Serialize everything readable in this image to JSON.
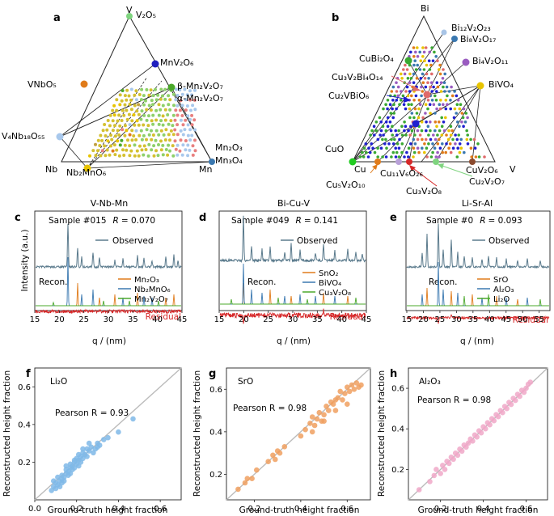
{
  "panel_a": {
    "letter": "a",
    "vertices": {
      "top": "V",
      "left": "Nb",
      "right": "Mn"
    },
    "labels": [
      {
        "text": "V₂O₅",
        "color": "#111111"
      },
      {
        "text": "MnV₂O₆",
        "color": "#1f1fbf"
      },
      {
        "text": "VNbO₅",
        "color": "#e07b1a"
      },
      {
        "text": "β-Mn₂V₂O₇",
        "color": "#4aa82a"
      },
      {
        "text": "α-Mn₂V₂O₇",
        "color": "#8b4a2e"
      },
      {
        "text": "V₄Nb₁₈O₅₅",
        "color": "#8fb5dc"
      },
      {
        "text": "Mn₂O₃",
        "color": "#e88080"
      },
      {
        "text": "Mn₃O₄",
        "color": "#3a78b0"
      },
      {
        "text": "Nb₂MnO₆",
        "color": "#d4b000"
      }
    ]
  },
  "panel_b": {
    "letter": "b",
    "vertices": {
      "top": "Bi",
      "left": "Cu",
      "right": "V"
    },
    "labels": [
      {
        "text": "Bi₁₂V₂O₂₃",
        "color": "#a8c4e6"
      },
      {
        "text": "Bi₈V₂O₁₇",
        "color": "#3a78b0"
      },
      {
        "text": "CuBi₂O₄",
        "color": "#3aa832"
      },
      {
        "text": "Bi₄V₂O₁₁",
        "color": "#9a5cc0"
      },
      {
        "text": "Cu₃V₂Bi₄O₁₄",
        "color": "#e06a6a"
      },
      {
        "text": "BiVO₄",
        "color": "#d4b000"
      },
      {
        "text": "Cu₂VBiO₆",
        "color": "#1f1fcf"
      },
      {
        "text": "CuO",
        "color": "#22bb22"
      },
      {
        "text": "CuV₂O₆",
        "color": "#8b4a2e"
      },
      {
        "text": "Cu₁₁V₆O₂₆",
        "color": "#b8a0d8"
      },
      {
        "text": "Cu₂V₂O₇",
        "color": "#7fd47f"
      },
      {
        "text": "Cu₅V₂O₁₀",
        "color": "#e07b1a"
      },
      {
        "text": "Cu₃V₂O₈",
        "color": "#d62728"
      }
    ]
  },
  "xrd_panels": [
    {
      "letter": "c",
      "title": "V-Nb-Mn",
      "sample": "Sample #015",
      "R_label": "R",
      "R_value": "= 0.070",
      "observed": "Observed",
      "recon": "Recon.",
      "residual": "Residual",
      "legend": [
        {
          "text": "Mn₂O₃",
          "color": "#e07b1a"
        },
        {
          "text": "Nb₂MnO₆",
          "color": "#3a78b0"
        },
        {
          "text": "Mn₂V₂O₇",
          "color": "#4aa82a"
        }
      ],
      "ticks": [
        "15",
        "20",
        "25",
        "30",
        "35",
        "40",
        "45"
      ],
      "xlabel": "q / (nm)",
      "ylabel": "Intensity (a.u.)"
    },
    {
      "letter": "d",
      "title": "Bi-Cu-V",
      "sample": "Sample #049",
      "R_label": "R",
      "R_value": "= 0.141",
      "observed": "Observed",
      "recon": "Recon.",
      "residual": "Residual",
      "legend": [
        {
          "text": "SnO₂",
          "color": "#e07b1a"
        },
        {
          "text": "BiVO₄",
          "color": "#3a78b0"
        },
        {
          "text": "Cu₃V₂O₈",
          "color": "#4aa82a"
        }
      ],
      "ticks": [
        "15",
        "20",
        "25",
        "30",
        "35",
        "40",
        "45"
      ],
      "xlabel": "q / (nm)",
      "ylabel": "Intensity (a.u.)"
    },
    {
      "letter": "e",
      "title": "Li-Sr-Al",
      "sample": "Sample #0",
      "R_label": "R",
      "R_value": "= 0.093",
      "observed": "Observed",
      "recon": "Recon.",
      "residual": "Residual",
      "legend": [
        {
          "text": "SrO",
          "color": "#e07b1a"
        },
        {
          "text": "Al₂O₃",
          "color": "#3a78b0"
        },
        {
          "text": "Li₂O",
          "color": "#4aa82a"
        }
      ],
      "ticks": [
        "15",
        "20",
        "25",
        "30",
        "35",
        "40",
        "45",
        "50",
        "55"
      ],
      "xlabel": "q / (nm)",
      "ylabel": "Intensity (a.u.)"
    }
  ],
  "chart_data": [
    {
      "type": "scatter",
      "panel": "f",
      "title": "Li₂O",
      "annotation": "Pearson R = 0.93",
      "xlabel": "Ground-truth height fraction",
      "ylabel": "Reconstructed height fraction",
      "xlim": [
        0,
        0.7
      ],
      "ylim": [
        0,
        0.7
      ],
      "xticks": [
        "0.0",
        "0.2",
        "0.4",
        "0.6"
      ],
      "yticks": [
        "0.2",
        "0.4",
        "0.6"
      ],
      "color": "#7fb8e8",
      "x": [
        0.08,
        0.09,
        0.1,
        0.1,
        0.11,
        0.12,
        0.12,
        0.13,
        0.13,
        0.14,
        0.14,
        0.15,
        0.15,
        0.16,
        0.16,
        0.17,
        0.17,
        0.18,
        0.18,
        0.19,
        0.19,
        0.2,
        0.2,
        0.21,
        0.21,
        0.22,
        0.22,
        0.23,
        0.23,
        0.24,
        0.25,
        0.25,
        0.26,
        0.27,
        0.28,
        0.29,
        0.3,
        0.31,
        0.33,
        0.35,
        0.09,
        0.11,
        0.13,
        0.15,
        0.17,
        0.19,
        0.21,
        0.23,
        0.26,
        0.3,
        0.4,
        0.47
      ],
      "y": [
        0.05,
        0.07,
        0.06,
        0.09,
        0.08,
        0.1,
        0.07,
        0.11,
        0.13,
        0.12,
        0.1,
        0.14,
        0.16,
        0.13,
        0.15,
        0.17,
        0.19,
        0.16,
        0.18,
        0.2,
        0.17,
        0.22,
        0.19,
        0.21,
        0.24,
        0.2,
        0.23,
        0.25,
        0.22,
        0.24,
        0.27,
        0.23,
        0.26,
        0.28,
        0.25,
        0.27,
        0.3,
        0.29,
        0.32,
        0.33,
        0.1,
        0.12,
        0.09,
        0.18,
        0.14,
        0.21,
        0.18,
        0.27,
        0.3,
        0.28,
        0.36,
        0.43
      ]
    },
    {
      "type": "scatter",
      "panel": "g",
      "title": "SrO",
      "annotation": "Pearson R = 0.98",
      "xlabel": "Ground-truth height fraction",
      "ylabel": "Reconstructed height fraction",
      "xlim": [
        0.08,
        0.7
      ],
      "ylim": [
        0.08,
        0.7
      ],
      "xticks": [
        "0.2",
        "0.4",
        "0.6"
      ],
      "yticks": [
        "0.2",
        "0.4",
        "0.6"
      ],
      "color": "#f0a060",
      "x": [
        0.13,
        0.16,
        0.17,
        0.19,
        0.21,
        0.26,
        0.28,
        0.29,
        0.3,
        0.31,
        0.33,
        0.4,
        0.42,
        0.44,
        0.45,
        0.46,
        0.47,
        0.48,
        0.49,
        0.5,
        0.51,
        0.52,
        0.53,
        0.54,
        0.55,
        0.56,
        0.57,
        0.58,
        0.59,
        0.6,
        0.61,
        0.62,
        0.63,
        0.64,
        0.65,
        0.66,
        0.45,
        0.5,
        0.55,
        0.6
      ],
      "y": [
        0.13,
        0.16,
        0.18,
        0.18,
        0.22,
        0.26,
        0.29,
        0.27,
        0.31,
        0.3,
        0.33,
        0.38,
        0.41,
        0.44,
        0.47,
        0.43,
        0.46,
        0.49,
        0.45,
        0.48,
        0.52,
        0.5,
        0.54,
        0.53,
        0.55,
        0.56,
        0.59,
        0.55,
        0.58,
        0.61,
        0.59,
        0.62,
        0.6,
        0.63,
        0.61,
        0.62,
        0.4,
        0.45,
        0.5,
        0.53
      ]
    },
    {
      "type": "scatter",
      "panel": "h",
      "title": "Al₂O₃",
      "annotation": "Pearson R = 0.98",
      "xlabel": "Ground-truth height fraction",
      "ylabel": "Reconstructed height fraction",
      "xlim": [
        0.05,
        0.7
      ],
      "ylim": [
        0.05,
        0.7
      ],
      "xticks": [
        "0.2",
        "0.4",
        "0.6"
      ],
      "yticks": [
        "0.2",
        "0.4",
        "0.6"
      ],
      "color": "#f0a8c8",
      "x": [
        0.1,
        0.15,
        0.17,
        0.18,
        0.2,
        0.21,
        0.22,
        0.23,
        0.24,
        0.25,
        0.26,
        0.27,
        0.28,
        0.29,
        0.3,
        0.31,
        0.32,
        0.33,
        0.34,
        0.35,
        0.36,
        0.37,
        0.38,
        0.39,
        0.4,
        0.41,
        0.42,
        0.43,
        0.44,
        0.45,
        0.46,
        0.47,
        0.48,
        0.49,
        0.5,
        0.51,
        0.52,
        0.53,
        0.54,
        0.55,
        0.56,
        0.57,
        0.58,
        0.59,
        0.6,
        0.61,
        0.62
      ],
      "y": [
        0.1,
        0.14,
        0.17,
        0.2,
        0.18,
        0.22,
        0.2,
        0.24,
        0.23,
        0.26,
        0.25,
        0.28,
        0.27,
        0.3,
        0.29,
        0.32,
        0.31,
        0.33,
        0.35,
        0.34,
        0.37,
        0.36,
        0.39,
        0.38,
        0.41,
        0.4,
        0.43,
        0.42,
        0.45,
        0.44,
        0.47,
        0.46,
        0.49,
        0.48,
        0.51,
        0.5,
        0.53,
        0.52,
        0.55,
        0.54,
        0.57,
        0.56,
        0.59,
        0.58,
        0.6,
        0.62,
        0.63
      ]
    }
  ]
}
